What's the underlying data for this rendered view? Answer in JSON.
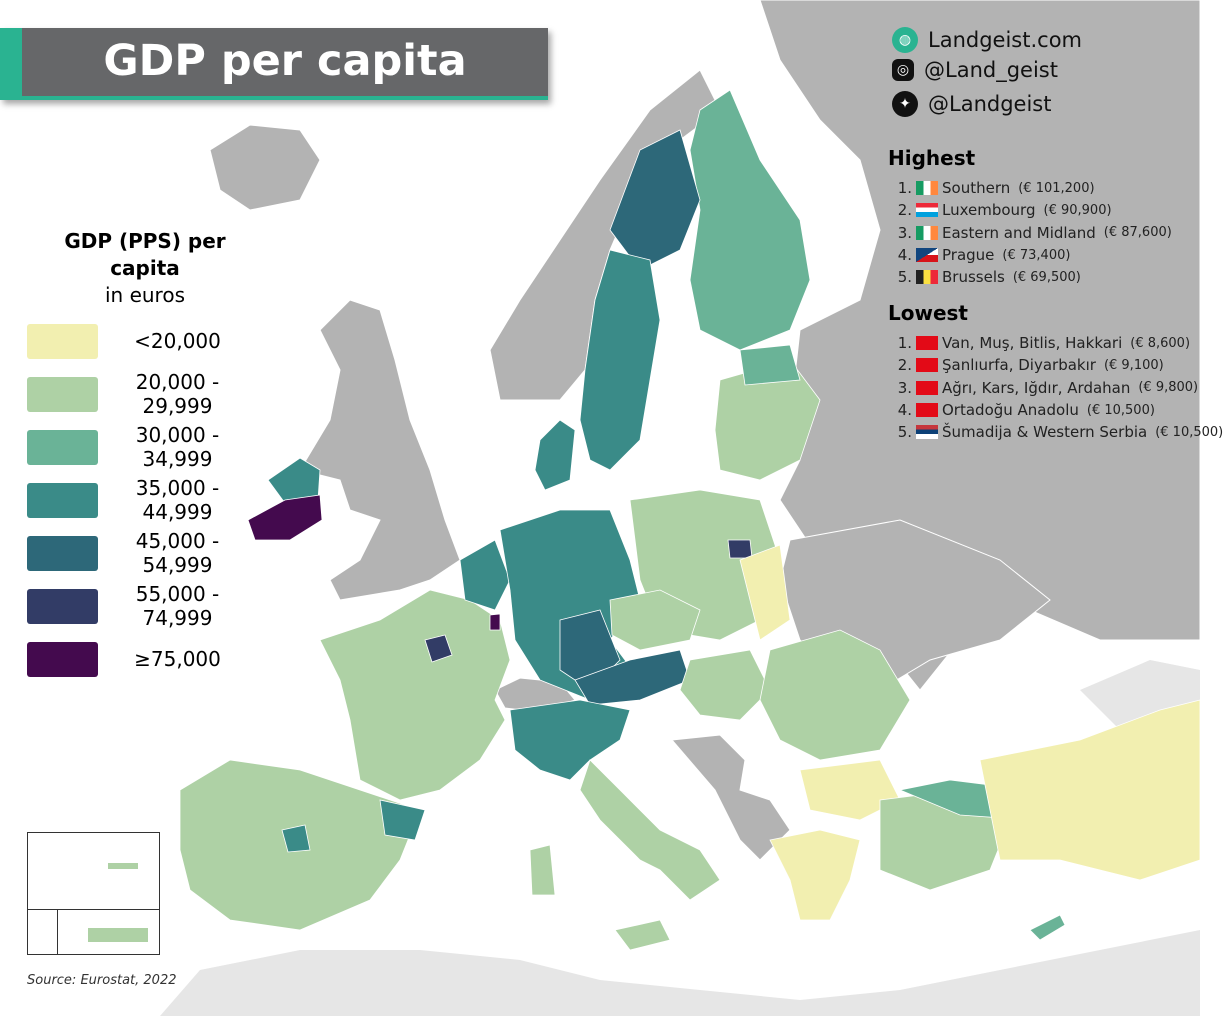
{
  "title": "GDP per capita",
  "social": [
    {
      "icon": "globe-icon",
      "label": "Landgeist.com"
    },
    {
      "icon": "instagram-icon",
      "label": "@Land_geist"
    },
    {
      "icon": "twitter-icon",
      "label": "@Landgeist"
    }
  ],
  "highest": {
    "heading": "Highest",
    "items": [
      {
        "rank": "1.",
        "flag": "ireland",
        "name": "Southern",
        "value": "(€ 101,200)"
      },
      {
        "rank": "2.",
        "flag": "luxembourg",
        "name": "Luxembourg",
        "value": "(€ 90,900)"
      },
      {
        "rank": "3.",
        "flag": "ireland",
        "name": "Eastern and Midland",
        "value": "(€ 87,600)"
      },
      {
        "rank": "4.",
        "flag": "czechia",
        "name": "Prague",
        "value": "(€ 73,400)"
      },
      {
        "rank": "5.",
        "flag": "belgium",
        "name": "Brussels",
        "value": "(€ 69,500)"
      }
    ]
  },
  "lowest": {
    "heading": "Lowest",
    "items": [
      {
        "rank": "1.",
        "flag": "turkey",
        "name": "Van, Muş, Bitlis, Hakkari",
        "value": "(€ 8,600)"
      },
      {
        "rank": "2.",
        "flag": "turkey",
        "name": "Şanlıurfa, Diyarbakır",
        "value": "(€ 9,100)"
      },
      {
        "rank": "3.",
        "flag": "turkey",
        "name": "Ağrı, Kars, Iğdır, Ardahan",
        "value": "(€ 9,800)"
      },
      {
        "rank": "4.",
        "flag": "turkey",
        "name": "Ortadoğu Anadolu",
        "value": "(€ 10,500)"
      },
      {
        "rank": "5.",
        "flag": "serbia",
        "name": "Šumadija & Western Serbia",
        "value": "(€ 10,500)"
      }
    ]
  },
  "legend": {
    "title_bold": "GDP (PPS) per capita",
    "title_sub": "in euros",
    "classes": [
      {
        "label": "<20,000",
        "color": "#f2efb0"
      },
      {
        "label": "20,000 - 29,999",
        "color": "#aed1a5"
      },
      {
        "label": "30,000 - 34,999",
        "color": "#6ab397"
      },
      {
        "label": "35,000 - 44,999",
        "color": "#3a8b88"
      },
      {
        "label": "45,000 - 54,999",
        "color": "#2d6879"
      },
      {
        "label": "55,000 - 74,999",
        "color": "#323c66"
      },
      {
        "label": "≥75,000",
        "color": "#440a4e"
      }
    ]
  },
  "colors": {
    "no_data": "#b3b3b3",
    "outside": "#e6e6e6",
    "sea": "#ffffff",
    "accent": "#2ab391"
  },
  "source": "Source: Eurostat, 2022"
}
